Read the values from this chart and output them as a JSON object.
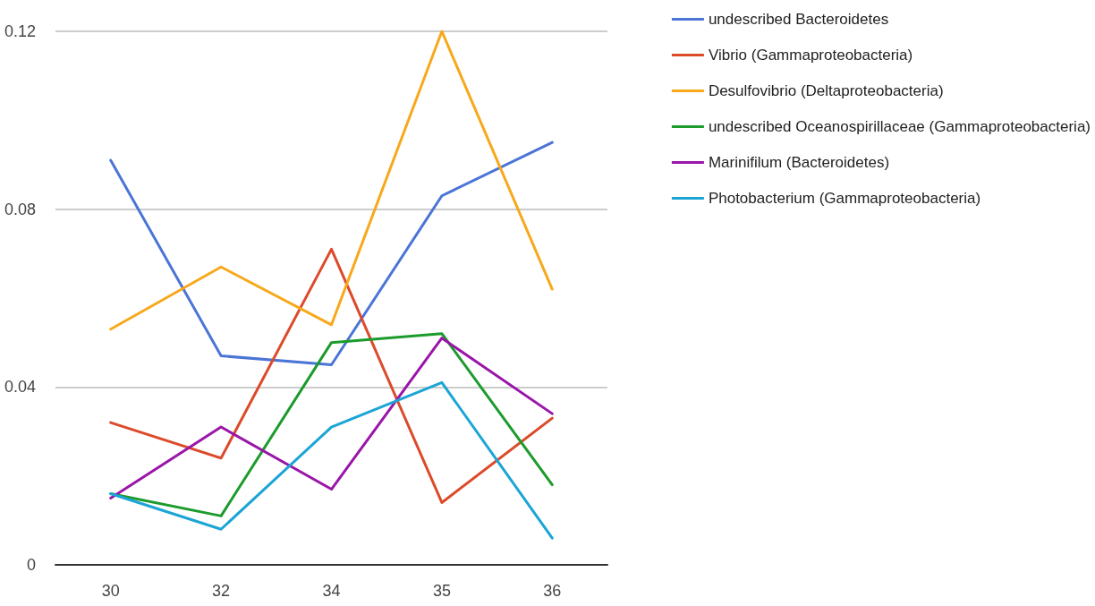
{
  "chart_data": {
    "type": "line",
    "categories": [
      "30",
      "32",
      "34",
      "35",
      "36"
    ],
    "series": [
      {
        "name": "undescribed Bacteroidetes",
        "color": "#4a74d6",
        "values": [
          0.091,
          0.047,
          0.045,
          0.083,
          0.095
        ]
      },
      {
        "name": "Vibrio (Gammaproteobacteria)",
        "color": "#dc4a2a",
        "values": [
          0.032,
          0.024,
          0.071,
          0.014,
          0.033
        ]
      },
      {
        "name": "Desulfovibrio (Deltaproteobacteria)",
        "color": "#f7a81b",
        "values": [
          0.053,
          0.067,
          0.054,
          0.12,
          0.062
        ]
      },
      {
        "name": "undescribed Oceanospirillaceae (Gammaproteobacteria)",
        "color": "#1c9b2c",
        "values": [
          0.016,
          0.011,
          0.05,
          0.052,
          0.018
        ]
      },
      {
        "name": "Marinifilum (Bacteroidetes)",
        "color": "#9a16a8",
        "values": [
          0.015,
          0.031,
          0.017,
          0.051,
          0.034
        ]
      },
      {
        "name": "Photobacterium (Gammaproteobacteria)",
        "color": "#1ba5d5",
        "values": [
          0.016,
          0.008,
          0.031,
          0.041,
          0.006
        ]
      }
    ],
    "ylim": [
      0,
      0.12
    ],
    "yticks": [
      0,
      0.04,
      0.08,
      0.12
    ],
    "grid": "y",
    "legend": "right",
    "marker": "none",
    "line_style": "solid"
  }
}
